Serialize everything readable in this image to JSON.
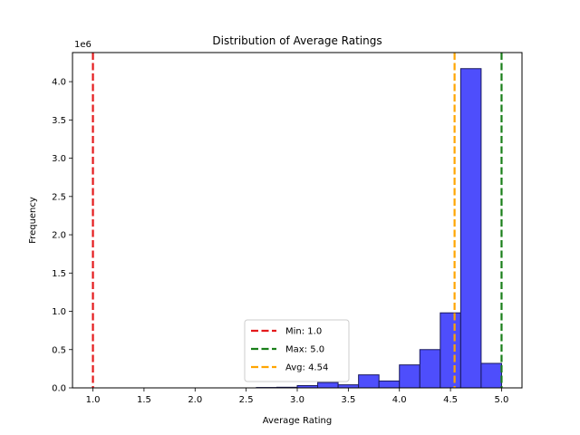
{
  "chart_data": {
    "type": "bar",
    "title": "Distribution of Average Ratings",
    "xlabel": "Average Rating",
    "ylabel": "Frequency",
    "y_scale_label": "1e6",
    "xlim": [
      0.8,
      5.2
    ],
    "ylim": [
      0,
      4.38
    ],
    "x_ticks": [
      1.0,
      1.5,
      2.0,
      2.5,
      3.0,
      3.5,
      4.0,
      4.5,
      5.0
    ],
    "x_tick_labels": [
      "1.0",
      "1.5",
      "2.0",
      "2.5",
      "3.0",
      "3.5",
      "4.0",
      "4.5",
      "5.0"
    ],
    "y_ticks": [
      0.0,
      0.5,
      1.0,
      1.5,
      2.0,
      2.5,
      3.0,
      3.5,
      4.0
    ],
    "y_tick_labels": [
      "0.0",
      "0.5",
      "1.0",
      "1.5",
      "2.0",
      "2.5",
      "3.0",
      "3.5",
      "4.0"
    ],
    "bar_color": "#4a4afc",
    "bar_edge_color": "#1a1a5e",
    "bins": [
      {
        "x0": 2.6,
        "x1": 2.8,
        "value": 0.005
      },
      {
        "x0": 2.8,
        "x1": 3.0,
        "value": 0.008
      },
      {
        "x0": 3.0,
        "x1": 3.2,
        "value": 0.03
      },
      {
        "x0": 3.2,
        "x1": 3.4,
        "value": 0.07
      },
      {
        "x0": 3.4,
        "x1": 3.6,
        "value": 0.04
      },
      {
        "x0": 3.6,
        "x1": 3.8,
        "value": 0.17
      },
      {
        "x0": 3.8,
        "x1": 4.0,
        "value": 0.09
      },
      {
        "x0": 4.0,
        "x1": 4.2,
        "value": 0.3
      },
      {
        "x0": 4.2,
        "x1": 4.4,
        "value": 0.5
      },
      {
        "x0": 4.4,
        "x1": 4.6,
        "value": 0.98
      },
      {
        "x0": 4.6,
        "x1": 4.8,
        "value": 4.17
      },
      {
        "x0": 4.8,
        "x1": 5.0,
        "value": 0.32
      }
    ],
    "reference_lines": [
      {
        "label": "Min: 1.0",
        "x": 1.0,
        "color": "#e41a1c"
      },
      {
        "label": "Max: 5.0",
        "x": 5.0,
        "color": "#1a7f1a"
      },
      {
        "label": "Avg: 4.54",
        "x": 4.54,
        "color": "#ffa500"
      }
    ],
    "legend_position": "lower-center",
    "grid": false
  }
}
